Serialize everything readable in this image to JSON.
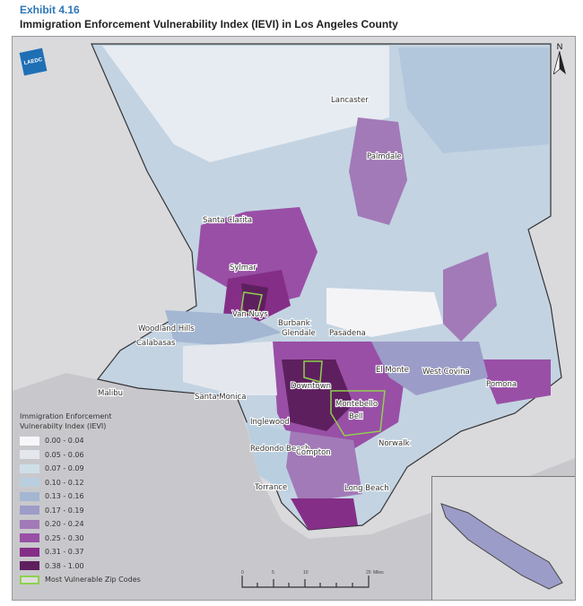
{
  "header": {
    "exhibit": "Exhibit 4.16",
    "title": "Immigration Enforcement Vulnerability Index (IEVI) in Los Angeles County"
  },
  "logo": {
    "text": "LAEDC"
  },
  "north_arrow": {
    "label": "N"
  },
  "places": [
    "Lancaster",
    "Palmdale",
    "Santa Clarita",
    "Sylmar",
    "Van Nuys",
    "Woodland Hills",
    "Calabasas",
    "Burbank",
    "Glendale",
    "Pasadena",
    "El Monte",
    "West Covina",
    "Pomona",
    "Malibu",
    "Santa Monica",
    "Downtown",
    "Montebello",
    "Bell",
    "Inglewood",
    "Redondo Beach",
    "Compton",
    "Norwalk",
    "Torrance",
    "Long Beach"
  ],
  "legend": {
    "title": "Immigration Enforcement Vulnerabilty Index (IEVI)",
    "classes": [
      {
        "label": "0.00 - 0.04",
        "color": "#f7f7f9"
      },
      {
        "label": "0.05 - 0.06",
        "color": "#e4e8ee"
      },
      {
        "label": "0.07 - 0.09",
        "color": "#cfdfe8"
      },
      {
        "label": "0.10 - 0.12",
        "color": "#b9cfe0"
      },
      {
        "label": "0.13 - 0.16",
        "color": "#a3b6d2"
      },
      {
        "label": "0.17 - 0.19",
        "color": "#9c9cc8"
      },
      {
        "label": "0.20 - 0.24",
        "color": "#a27ab8"
      },
      {
        "label": "0.25 - 0.30",
        "color": "#994fa6"
      },
      {
        "label": "0.31 - 0.37",
        "color": "#852e87"
      },
      {
        "label": "0.38 - 1.00",
        "color": "#5e1f5e"
      }
    ],
    "vulnerable_label": "Most Vulnerable Zip Codes",
    "vulnerable_color": "#8fd14f"
  },
  "scale_bar": {
    "ticks": [
      "0",
      "5",
      "10",
      "20"
    ],
    "unit": "Miles"
  }
}
